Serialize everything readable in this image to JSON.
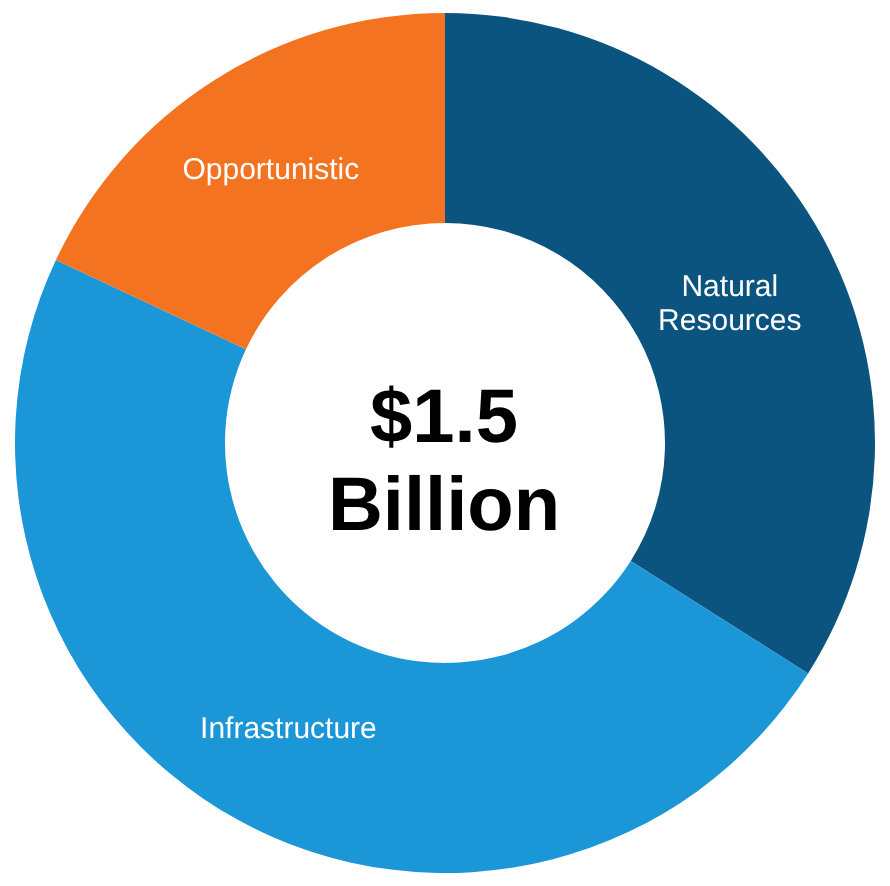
{
  "chart_data": {
    "type": "donut",
    "categories": [
      "Natural Resources",
      "Infrastructure",
      "Opportunistic"
    ],
    "values": [
      34,
      48,
      18
    ],
    "colors": [
      "#0b5480",
      "#1b96d6",
      "#f47320"
    ],
    "annotations": [
      "$1.5 Billion"
    ]
  }
}
